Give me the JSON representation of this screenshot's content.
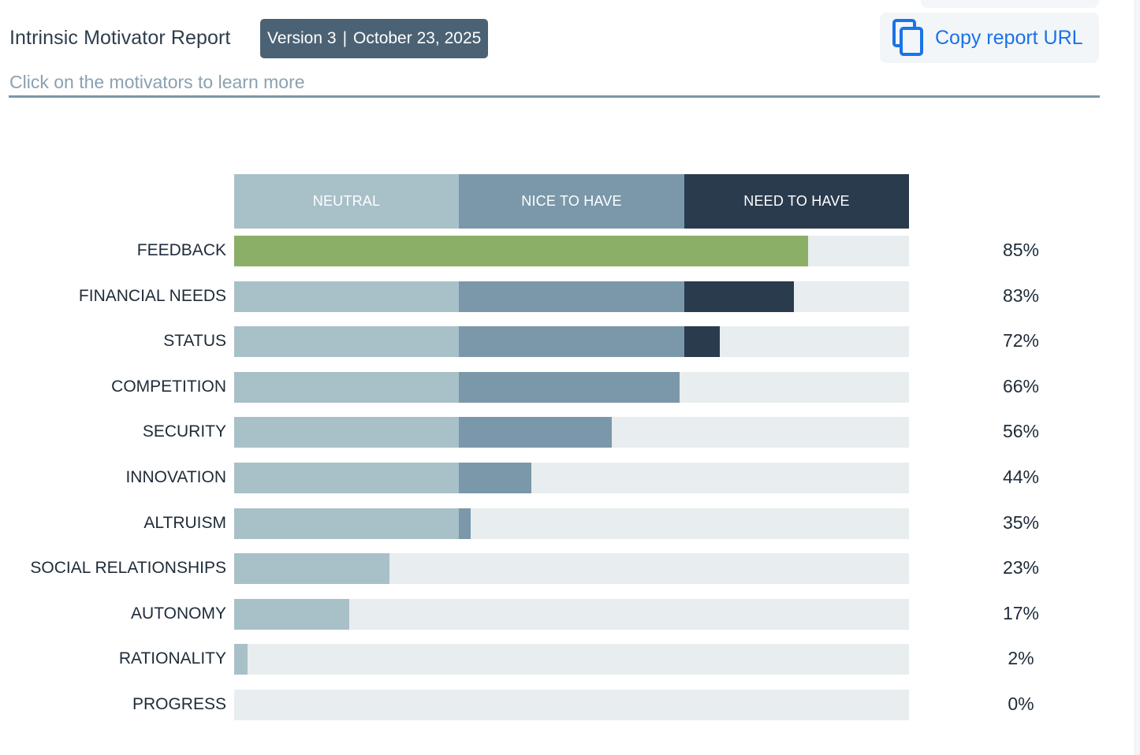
{
  "header": {
    "title": "Intrinsic Motivator Report",
    "version": "Version 3",
    "date": "October 23, 2025",
    "separator": "|",
    "copy_label": "Copy report URL",
    "copy_icon": "copy-icon",
    "subtitle": "Click on the motivators to learn more"
  },
  "colors": {
    "neutral": "#a8c0c8",
    "nice": "#7b98aa",
    "need": "#2b3b4e",
    "highlight": "#8caf68",
    "track": "#e8edef",
    "accent": "#1a73e8",
    "badge": "#4b6274"
  },
  "chart_data": {
    "type": "bar",
    "bands": [
      {
        "label": "NEUTRAL",
        "from": 0,
        "to": 33.3
      },
      {
        "label": "NICE TO HAVE",
        "from": 33.3,
        "to": 66.7
      },
      {
        "label": "NEED TO HAVE",
        "from": 66.7,
        "to": 100
      }
    ],
    "categories": [
      "FEEDBACK",
      "FINANCIAL NEEDS",
      "STATUS",
      "COMPETITION",
      "SECURITY",
      "INNOVATION",
      "ALTRUISM",
      "SOCIAL RELATIONSHIPS",
      "AUTONOMY",
      "RATIONALITY",
      "PROGRESS"
    ],
    "values": [
      85,
      83,
      72,
      66,
      56,
      44,
      35,
      23,
      17,
      2,
      0
    ],
    "value_labels": [
      "85%",
      "83%",
      "72%",
      "66%",
      "56%",
      "44%",
      "35%",
      "23%",
      "17%",
      "2%",
      "0%"
    ],
    "highlighted": [
      "FEEDBACK"
    ],
    "ylim": [
      0,
      100
    ]
  }
}
